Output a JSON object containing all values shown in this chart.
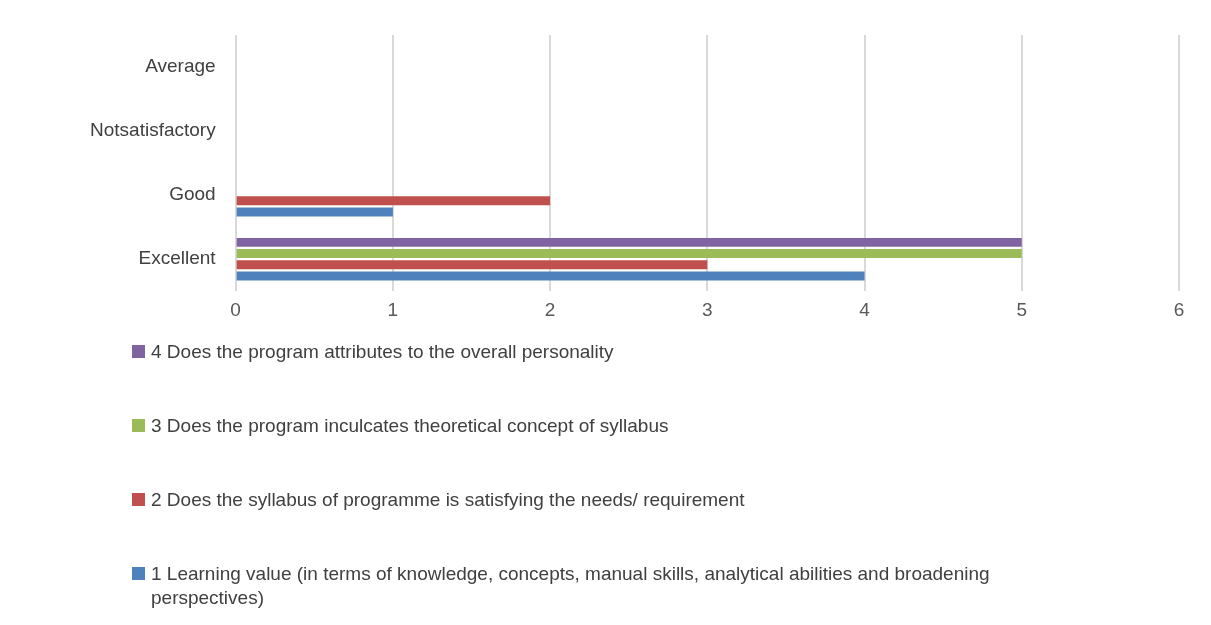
{
  "chart_data": {
    "type": "bar",
    "orientation": "horizontal",
    "categories": [
      "Average",
      "Notsatisfactory",
      "Good",
      "Excellent"
    ],
    "series": [
      {
        "name": "4 Does the program attributes to the overall personality",
        "color": "#8064a2",
        "values": [
          0,
          0,
          0,
          5
        ]
      },
      {
        "name": "3 Does the program inculcates theoretical concept of syllabus",
        "color": "#9bbb59",
        "values": [
          0,
          0,
          0,
          5
        ]
      },
      {
        "name": "2 Does the syllabus of programme is satisfying the needs/ requirement",
        "color": "#c0504d",
        "values": [
          0,
          0,
          2,
          3
        ]
      },
      {
        "name": "1 Learning value (in terms of knowledge, concepts, manual skills, analytical abilities and broadening perspectives)",
        "color": "#4f81bd",
        "values": [
          0,
          0,
          1,
          4
        ]
      }
    ],
    "xlim": [
      0,
      6
    ],
    "xticks": [
      0,
      1,
      2,
      3,
      4,
      5,
      6
    ],
    "grid": "x",
    "legend": "bottom"
  }
}
